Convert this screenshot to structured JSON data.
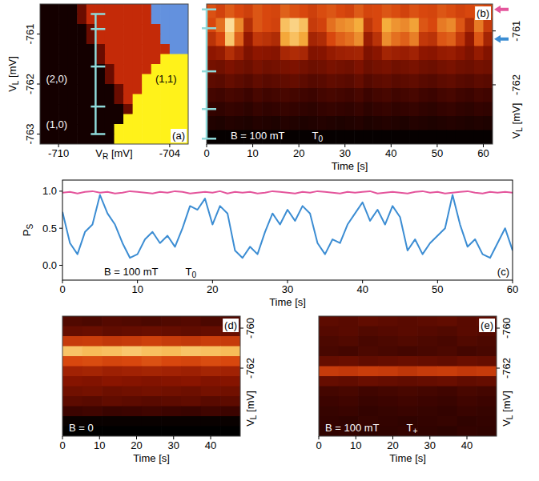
{
  "chart_data": [
    {
      "type": "heatmap",
      "panel_label": "(a)",
      "x_label": "VR [mV]",
      "y_label": "VL [mV]",
      "xlim": [
        -711,
        -703
      ],
      "ylim": [
        -763.2,
        -760.4
      ],
      "xticks": [
        -710,
        -704
      ],
      "yticks": [
        -761,
        -762,
        -763
      ],
      "color_scale": {
        "range": [
          0,
          4
        ],
        "colors": [
          "#140000",
          "#6a0c00",
          "#c42a08",
          "#fff21a",
          "#6391de"
        ]
      },
      "cells": [
        [
          0,
          0,
          0,
          0,
          1,
          2,
          2,
          2,
          2,
          2,
          2,
          2,
          4,
          4,
          4,
          4
        ],
        [
          0,
          0,
          0,
          0,
          1,
          2,
          2,
          2,
          2,
          2,
          2,
          2,
          4,
          4,
          4,
          4
        ],
        [
          0,
          0,
          0,
          0,
          0,
          1,
          2,
          2,
          2,
          2,
          2,
          2,
          2,
          4,
          4,
          4
        ],
        [
          0,
          0,
          0,
          0,
          0,
          1,
          2,
          2,
          2,
          2,
          2,
          2,
          2,
          4,
          4,
          4
        ],
        [
          0,
          0,
          0,
          0,
          0,
          0,
          1,
          2,
          2,
          2,
          2,
          2,
          2,
          2,
          4,
          4
        ],
        [
          0,
          0,
          0,
          0,
          0,
          0,
          1,
          2,
          2,
          2,
          2,
          2,
          2,
          3,
          3,
          3
        ],
        [
          0,
          0,
          0,
          0,
          0,
          0,
          0,
          1,
          2,
          2,
          2,
          2,
          3,
          3,
          3,
          3
        ],
        [
          0,
          0,
          0,
          0,
          0,
          0,
          0,
          1,
          2,
          2,
          2,
          3,
          3,
          3,
          3,
          3
        ],
        [
          0,
          0,
          0,
          0,
          0,
          0,
          0,
          0,
          1,
          2,
          2,
          3,
          3,
          3,
          3,
          3
        ],
        [
          0,
          0,
          0,
          0,
          0,
          0,
          0,
          0,
          1,
          2,
          3,
          3,
          3,
          3,
          3,
          3
        ],
        [
          0,
          0,
          0,
          0,
          0,
          0,
          0,
          0,
          0,
          1,
          3,
          3,
          3,
          3,
          3,
          3
        ],
        [
          0,
          0,
          0,
          0,
          0,
          0,
          0,
          0,
          0,
          3,
          3,
          3,
          3,
          3,
          3,
          3
        ],
        [
          0,
          0,
          0,
          0,
          0,
          0,
          0,
          0,
          3,
          3,
          3,
          3,
          3,
          3,
          3,
          3
        ],
        [
          0,
          0,
          0,
          0,
          0,
          0,
          0,
          0,
          3,
          3,
          3,
          3,
          3,
          3,
          3,
          3
        ]
      ],
      "annotations": [
        {
          "text": "(2,0)",
          "x": -710.1,
          "y": -761.9
        },
        {
          "text": "(1,1)",
          "x": -704.2,
          "y": -761.9
        },
        {
          "text": "(1,0)",
          "x": -710.1,
          "y": -762.8
        }
      ],
      "bracket": {
        "x": -708,
        "ticks": [
          -760.6,
          -760.9,
          -761.65,
          -762.45,
          -763.0
        ]
      }
    },
    {
      "type": "heatmap",
      "panel_label": "(b)",
      "x_label": "Time [s]",
      "y_label": "VL [mV]",
      "annotation": "B = 100 mT",
      "state": "T0",
      "xlim": [
        0,
        62
      ],
      "ylim": [
        -763.1,
        -760.5
      ],
      "xticks": [
        0,
        10,
        20,
        30,
        40,
        50,
        60
      ],
      "yticks": [
        -761,
        -762
      ],
      "color_scale": {
        "range": [
          0,
          1
        ],
        "colors": [
          "#000000",
          "#3c0400",
          "#8e1600",
          "#d8470e",
          "#f5ad3c",
          "#fff7cc"
        ]
      },
      "cells": [
        [
          0.62,
          0.58,
          0.64,
          0.6,
          0.57,
          0.63,
          0.6,
          0.59,
          0.65,
          0.62,
          0.6,
          0.57,
          0.61,
          0.63,
          0.6,
          0.58,
          0.64,
          0.59,
          0.6,
          0.63,
          0.61,
          0.58,
          0.62,
          0.6,
          0.59,
          0.63,
          0.61,
          0.58,
          0.6,
          0.62,
          0.6
        ],
        [
          0.6,
          0.68,
          0.93,
          0.73,
          0.5,
          0.63,
          0.6,
          0.58,
          0.85,
          0.9,
          0.85,
          0.55,
          0.58,
          0.68,
          0.73,
          0.75,
          0.8,
          0.53,
          0.6,
          0.8,
          0.75,
          0.73,
          0.78,
          0.63,
          0.6,
          0.7,
          0.73,
          0.63,
          0.5,
          0.7,
          0.55
        ],
        [
          0.52,
          0.6,
          0.87,
          0.65,
          0.41,
          0.54,
          0.52,
          0.49,
          0.79,
          0.85,
          0.79,
          0.46,
          0.49,
          0.6,
          0.65,
          0.68,
          0.74,
          0.43,
          0.52,
          0.74,
          0.68,
          0.65,
          0.71,
          0.54,
          0.52,
          0.63,
          0.65,
          0.54,
          0.41,
          0.63,
          0.46
        ],
        [
          0.4,
          0.42,
          0.5,
          0.44,
          0.36,
          0.4,
          0.39,
          0.38,
          0.47,
          0.49,
          0.47,
          0.37,
          0.38,
          0.42,
          0.44,
          0.45,
          0.46,
          0.36,
          0.39,
          0.46,
          0.44,
          0.43,
          0.45,
          0.4,
          0.39,
          0.42,
          0.43,
          0.4,
          0.36,
          0.42,
          0.37
        ],
        [
          0.34,
          0.33,
          0.36,
          0.34,
          0.32,
          0.35,
          0.33,
          0.34,
          0.35,
          0.36,
          0.34,
          0.32,
          0.33,
          0.35,
          0.34,
          0.33,
          0.36,
          0.32,
          0.34,
          0.35,
          0.33,
          0.34,
          0.35,
          0.33,
          0.32,
          0.34,
          0.35,
          0.33,
          0.32,
          0.34,
          0.33
        ],
        [
          0.28,
          0.27,
          0.3,
          0.28,
          0.26,
          0.29,
          0.27,
          0.28,
          0.29,
          0.3,
          0.28,
          0.26,
          0.27,
          0.29,
          0.28,
          0.27,
          0.3,
          0.26,
          0.28,
          0.29,
          0.27,
          0.28,
          0.29,
          0.27,
          0.26,
          0.28,
          0.29,
          0.27,
          0.26,
          0.28,
          0.27
        ],
        [
          0.22,
          0.21,
          0.23,
          0.22,
          0.2,
          0.23,
          0.21,
          0.22,
          0.23,
          0.22,
          0.21,
          0.2,
          0.22,
          0.23,
          0.22,
          0.21,
          0.23,
          0.2,
          0.22,
          0.23,
          0.21,
          0.22,
          0.23,
          0.21,
          0.2,
          0.22,
          0.23,
          0.21,
          0.2,
          0.22,
          0.21
        ],
        [
          0.17,
          0.16,
          0.18,
          0.17,
          0.15,
          0.18,
          0.16,
          0.17,
          0.18,
          0.17,
          0.16,
          0.15,
          0.17,
          0.18,
          0.17,
          0.16,
          0.18,
          0.15,
          0.17,
          0.18,
          0.16,
          0.17,
          0.18,
          0.16,
          0.15,
          0.17,
          0.18,
          0.16,
          0.15,
          0.17,
          0.16
        ],
        [
          0.11,
          0.1,
          0.12,
          0.11,
          0.1,
          0.12,
          0.11,
          0.1,
          0.12,
          0.11,
          0.1,
          0.11,
          0.12,
          0.11,
          0.1,
          0.11,
          0.12,
          0.1,
          0.11,
          0.12,
          0.11,
          0.1,
          0.12,
          0.11,
          0.1,
          0.11,
          0.12,
          0.11,
          0.1,
          0.11,
          0.1
        ],
        [
          0.02,
          0.02,
          0.02,
          0.02,
          0.02,
          0.02,
          0.02,
          0.02,
          0.02,
          0.02,
          0.02,
          0.02,
          0.02,
          0.02,
          0.02,
          0.02,
          0.02,
          0.02,
          0.02,
          0.02,
          0.02,
          0.02,
          0.02,
          0.02,
          0.02,
          0.02,
          0.02,
          0.02,
          0.02,
          0.02,
          0.02
        ]
      ],
      "bracket": {
        "x": 0,
        "ticks": [
          -760.6,
          -760.95,
          -761.75,
          -762.45,
          -763.0
        ]
      },
      "markers": [
        {
          "y": -760.6,
          "color": "#e4559c"
        },
        {
          "y": -761.15,
          "color": "#3c8dd3"
        }
      ]
    },
    {
      "type": "line",
      "panel_label": "(c)",
      "x_label": "Time [s]",
      "y_label": "PS",
      "annotation": "B = 100 mT",
      "state": "T0",
      "xlim": [
        0,
        60
      ],
      "ylim": [
        -0.2,
        1.15
      ],
      "xticks": [
        0,
        10,
        20,
        30,
        40,
        50,
        60
      ],
      "yticks": [
        {
          "value": 0,
          "label": "0.0"
        },
        {
          "value": 0.5,
          "label": "0.5"
        },
        {
          "value": 1,
          "label": "1.0"
        }
      ],
      "x": [
        0,
        1,
        2,
        3,
        4,
        5,
        6,
        7,
        8,
        9,
        10,
        11,
        12,
        13,
        14,
        15,
        16,
        17,
        18,
        19,
        20,
        21,
        22,
        23,
        24,
        25,
        26,
        27,
        28,
        29,
        30,
        31,
        32,
        33,
        34,
        35,
        36,
        37,
        38,
        39,
        40,
        41,
        42,
        43,
        44,
        45,
        46,
        47,
        48,
        49,
        50,
        51,
        52,
        53,
        54,
        55,
        56,
        57,
        58,
        59,
        60
      ],
      "series": [
        {
          "color": "#e4559c",
          "values": [
            0.98,
            0.99,
            0.97,
            0.99,
            1.0,
            0.98,
            0.99,
            0.97,
            0.98,
            1.0,
            0.99,
            0.98,
            0.97,
            0.99,
            0.98,
            1.0,
            0.99,
            0.97,
            0.98,
            0.99,
            0.98,
            1.0,
            0.97,
            0.99,
            0.98,
            0.99,
            0.97,
            0.98,
            1.0,
            0.99,
            0.98,
            0.97,
            0.99,
            0.98,
            1.0,
            0.99,
            0.98,
            0.97,
            0.99,
            0.98,
            0.99,
            1.0,
            0.97,
            0.98,
            0.99,
            0.98,
            0.97,
            0.99,
            1.0,
            0.98,
            0.99,
            0.97,
            0.98,
            0.99,
            1.0,
            0.98,
            0.97,
            0.99,
            0.98,
            0.99,
            0.98
          ]
        },
        {
          "color": "#3c8dd3",
          "values": [
            0.72,
            0.3,
            0.15,
            0.45,
            0.55,
            0.95,
            0.7,
            0.55,
            0.3,
            0.1,
            0.15,
            0.35,
            0.45,
            0.3,
            0.4,
            0.25,
            0.5,
            0.8,
            0.75,
            0.9,
            0.55,
            0.8,
            0.7,
            0.2,
            0.1,
            0.25,
            0.15,
            0.45,
            0.7,
            0.55,
            0.75,
            0.6,
            0.8,
            0.7,
            0.3,
            0.15,
            0.35,
            0.3,
            0.55,
            0.7,
            0.85,
            0.6,
            0.75,
            0.55,
            0.8,
            0.65,
            0.2,
            0.35,
            0.15,
            0.3,
            0.4,
            0.5,
            0.95,
            0.55,
            0.25,
            0.35,
            0.15,
            0.1,
            0.3,
            0.5,
            0.2
          ]
        }
      ]
    },
    {
      "type": "heatmap",
      "panel_label": "(d)",
      "x_label": "Time [s]",
      "y_label": "VL [mV]",
      "annotation": "B = 0",
      "xlim": [
        0,
        48
      ],
      "ylim": [
        -765.4,
        -759.4
      ],
      "xticks": [
        0,
        10,
        20,
        30,
        40
      ],
      "yticks": [
        -760,
        -762
      ],
      "color_scale": {
        "range": [
          0,
          1
        ],
        "colors": [
          "#000000",
          "#3c0400",
          "#8e1600",
          "#d8470e",
          "#f5ad3c",
          "#fff7cc"
        ]
      },
      "cells": [
        [
          0.25,
          0.24,
          0.26,
          0.25,
          0.24,
          0.25,
          0.26,
          0.24,
          0.25
        ],
        [
          0.3,
          0.31,
          0.29,
          0.3,
          0.31,
          0.3,
          0.29,
          0.3,
          0.31
        ],
        [
          0.55,
          0.56,
          0.54,
          0.55,
          0.57,
          0.55,
          0.54,
          0.56,
          0.55
        ],
        [
          0.86,
          0.84,
          0.85,
          0.87,
          0.85,
          0.84,
          0.86,
          0.85,
          0.84
        ],
        [
          0.6,
          0.61,
          0.59,
          0.6,
          0.62,
          0.6,
          0.59,
          0.61,
          0.6
        ],
        [
          0.45,
          0.46,
          0.44,
          0.45,
          0.46,
          0.45,
          0.44,
          0.46,
          0.45
        ],
        [
          0.38,
          0.37,
          0.39,
          0.38,
          0.37,
          0.38,
          0.39,
          0.37,
          0.38
        ],
        [
          0.33,
          0.34,
          0.32,
          0.33,
          0.34,
          0.33,
          0.32,
          0.34,
          0.33
        ],
        [
          0.28,
          0.27,
          0.29,
          0.28,
          0.27,
          0.28,
          0.29,
          0.27,
          0.28
        ],
        [
          0.2,
          0.21,
          0.19,
          0.2,
          0.21,
          0.2,
          0.19,
          0.21,
          0.2
        ],
        [
          0.03,
          0.03,
          0.03,
          0.03,
          0.03,
          0.03,
          0.03,
          0.03,
          0.03
        ],
        [
          0,
          0,
          0,
          0,
          0,
          0,
          0,
          0,
          0
        ]
      ]
    },
    {
      "type": "heatmap",
      "panel_label": "(e)",
      "x_label": "Time [s]",
      "y_label": "VL [mV]",
      "annotation": "B = 100 mT",
      "state": "T+",
      "xlim": [
        0,
        48
      ],
      "ylim": [
        -765.4,
        -759.4
      ],
      "xticks": [
        0,
        10,
        20,
        30,
        40
      ],
      "yticks": [
        -760,
        -762
      ],
      "color_scale": {
        "range": [
          0,
          1
        ],
        "colors": [
          "#000000",
          "#3c0400",
          "#8e1600",
          "#d8470e",
          "#f5ad3c",
          "#fff7cc"
        ]
      },
      "cells": [
        [
          0.28,
          0.27,
          0.29,
          0.28,
          0.27,
          0.28,
          0.29,
          0.27,
          0.28
        ],
        [
          0.26,
          0.27,
          0.25,
          0.26,
          0.27,
          0.26,
          0.25,
          0.27,
          0.26
        ],
        [
          0.24,
          0.25,
          0.23,
          0.24,
          0.25,
          0.24,
          0.23,
          0.25,
          0.24
        ],
        [
          0.23,
          0.22,
          0.24,
          0.23,
          0.22,
          0.23,
          0.24,
          0.22,
          0.23
        ],
        [
          0.3,
          0.31,
          0.29,
          0.3,
          0.31,
          0.3,
          0.29,
          0.31,
          0.3
        ],
        [
          0.55,
          0.54,
          0.56,
          0.55,
          0.53,
          0.55,
          0.56,
          0.54,
          0.55
        ],
        [
          0.3,
          0.29,
          0.31,
          0.3,
          0.29,
          0.3,
          0.31,
          0.29,
          0.3
        ],
        [
          0.22,
          0.23,
          0.21,
          0.22,
          0.23,
          0.22,
          0.21,
          0.23,
          0.22
        ],
        [
          0.2,
          0.21,
          0.19,
          0.2,
          0.21,
          0.2,
          0.19,
          0.21,
          0.2
        ],
        [
          0.18,
          0.19,
          0.17,
          0.18,
          0.19,
          0.18,
          0.17,
          0.19,
          0.18
        ],
        [
          0.17,
          0.16,
          0.18,
          0.17,
          0.16,
          0.17,
          0.18,
          0.16,
          0.17
        ],
        [
          0.16,
          0.17,
          0.15,
          0.16,
          0.17,
          0.16,
          0.15,
          0.17,
          0.16
        ]
      ]
    }
  ]
}
